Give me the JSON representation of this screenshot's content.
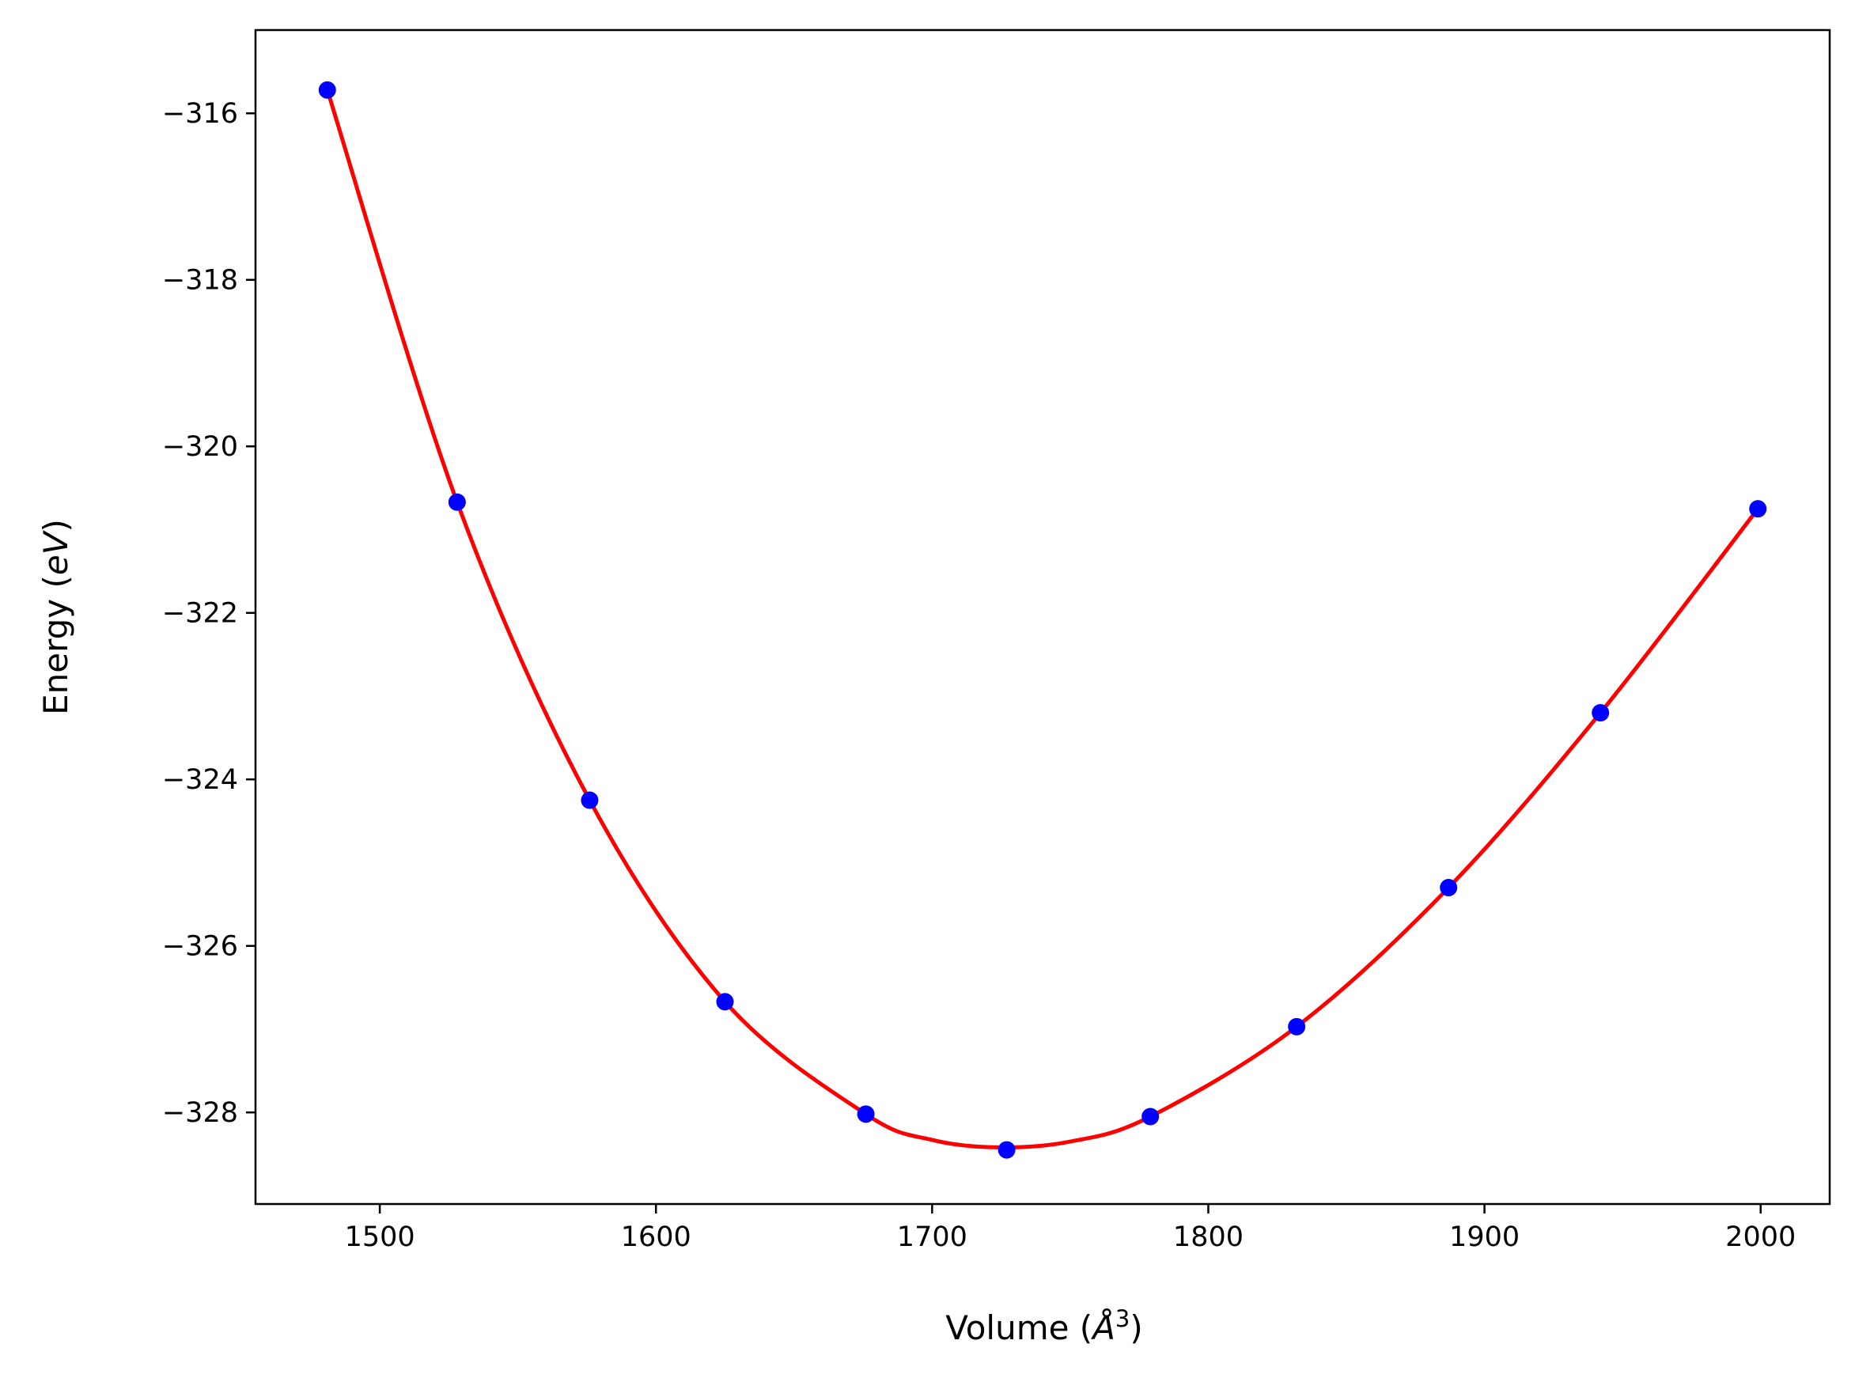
{
  "chart_data": {
    "type": "scatter",
    "xlabel": "Volume (",
    "xlabel_unit": "Å",
    "xlabel_exponent": "3",
    "xlabel_close": ")",
    "ylabel": "Energy (",
    "ylabel_unit": "eV",
    "ylabel_close": ")",
    "xlim": [
      1455,
      2025
    ],
    "ylim": [
      -329.1,
      -315.0
    ],
    "xticks": [
      1500,
      1600,
      1700,
      1800,
      1900,
      2000
    ],
    "xtick_labels": [
      "1500",
      "1600",
      "1700",
      "1800",
      "1900",
      "2000"
    ],
    "yticks": [
      -316,
      -318,
      -320,
      -322,
      -324,
      -326,
      -328
    ],
    "ytick_labels": [
      "−316",
      "−318",
      "−320",
      "−322",
      "−324",
      "−326",
      "−328"
    ],
    "grid": false,
    "series": [
      {
        "kind": "points",
        "color": "#0000ff",
        "x": [
          1481,
          1528,
          1576,
          1625,
          1676,
          1727,
          1779,
          1832,
          1887,
          1942,
          1999
        ],
        "y": [
          -315.72,
          -320.67,
          -324.25,
          -326.67,
          -328.02,
          -328.45,
          -328.05,
          -326.97,
          -325.3,
          -323.2,
          -320.75
        ]
      },
      {
        "kind": "fit-line",
        "color": "#ff0000",
        "x": [
          1481,
          1528,
          1576,
          1625,
          1676,
          1700,
          1724,
          1750,
          1779,
          1832,
          1887,
          1942,
          1999
        ],
        "y": [
          -315.72,
          -320.67,
          -324.25,
          -326.67,
          -328.02,
          -328.33,
          -328.42,
          -328.35,
          -328.05,
          -326.97,
          -325.3,
          -323.2,
          -320.75
        ]
      }
    ]
  }
}
